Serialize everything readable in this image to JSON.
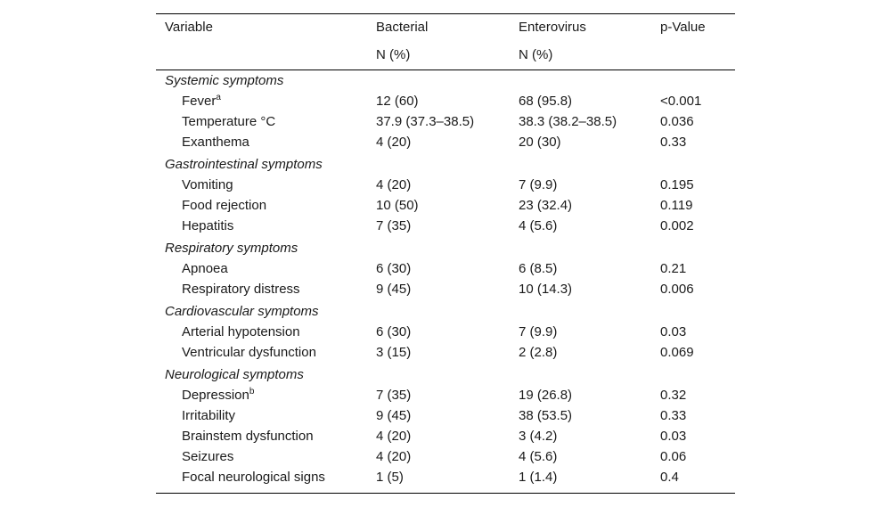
{
  "table": {
    "columns": [
      {
        "label": "Variable"
      },
      {
        "label": "Bacterial",
        "sub": "N (%)"
      },
      {
        "label": "Enterovirus",
        "sub": "N (%)"
      },
      {
        "label": "p-Value"
      }
    ],
    "sections": [
      {
        "title": "Systemic symptoms",
        "rows": [
          {
            "label": "Fever",
            "sup": "a",
            "cells": [
              "12 (60)",
              "68 (95.8)",
              "<0.001"
            ]
          },
          {
            "label": "Temperature °C",
            "cells": [
              "37.9 (37.3–38.5)",
              "38.3 (38.2–38.5)",
              "0.036"
            ]
          },
          {
            "label": "Exanthema",
            "cells": [
              "4 (20)",
              "20 (30)",
              "0.33"
            ]
          }
        ]
      },
      {
        "title": "Gastrointestinal symptoms",
        "rows": [
          {
            "label": "Vomiting",
            "cells": [
              "4 (20)",
              "7 (9.9)",
              "0.195"
            ]
          },
          {
            "label": "Food rejection",
            "cells": [
              "10 (50)",
              "23 (32.4)",
              "0.119"
            ]
          },
          {
            "label": "Hepatitis",
            "cells": [
              "7 (35)",
              "4 (5.6)",
              "0.002"
            ]
          }
        ]
      },
      {
        "title": "Respiratory symptoms",
        "rows": [
          {
            "label": "Apnoea",
            "cells": [
              "6 (30)",
              "6 (8.5)",
              "0.21"
            ]
          },
          {
            "label": "Respiratory distress",
            "cells": [
              "9 (45)",
              "10 (14.3)",
              "0.006"
            ]
          }
        ]
      },
      {
        "title": "Cardiovascular symptoms",
        "rows": [
          {
            "label": "Arterial hypotension",
            "cells": [
              "6 (30)",
              "7 (9.9)",
              "0.03"
            ]
          },
          {
            "label": "Ventricular dysfunction",
            "cells": [
              "3 (15)",
              "2 (2.8)",
              "0.069"
            ]
          }
        ]
      },
      {
        "title": "Neurological symptoms",
        "rows": [
          {
            "label": "Depression",
            "sup": "b",
            "cells": [
              "7 (35)",
              "19 (26.8)",
              "0.32"
            ]
          },
          {
            "label": "Irritability",
            "cells": [
              "9 (45)",
              "38 (53.5)",
              "0.33"
            ]
          },
          {
            "label": "Brainstem dysfunction",
            "cells": [
              "4 (20)",
              "3 (4.2)",
              "0.03"
            ]
          },
          {
            "label": "Seizures",
            "cells": [
              "4 (20)",
              "4 (5.6)",
              "0.06"
            ]
          },
          {
            "label": "Focal neurological signs",
            "cells": [
              "1 (5)",
              "1 (1.4)",
              "0.4"
            ]
          }
        ]
      }
    ]
  }
}
